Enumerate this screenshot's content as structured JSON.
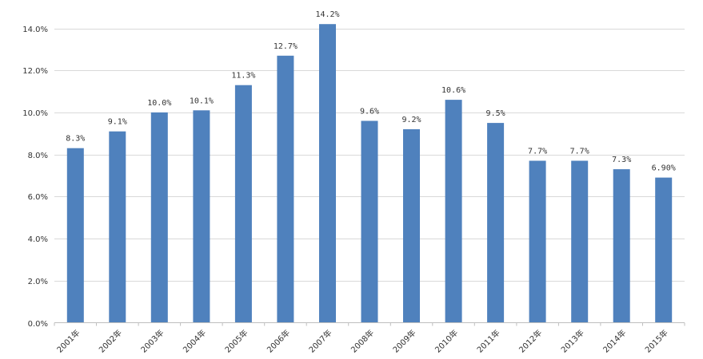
{
  "chart_data": {
    "type": "bar",
    "title": "",
    "xlabel": "",
    "ylabel": "",
    "categories": [
      "2001年",
      "2002年",
      "2003年",
      "2004年",
      "2005年",
      "2006年",
      "2007年",
      "2008年",
      "2009年",
      "2010年",
      "2011年",
      "2012年",
      "2013年",
      "2014年",
      "2015年"
    ],
    "values": [
      8.3,
      9.1,
      10.0,
      10.1,
      11.3,
      12.7,
      14.2,
      9.6,
      9.2,
      10.6,
      9.5,
      7.7,
      7.7,
      7.3,
      6.9
    ],
    "data_labels": [
      "8.3%",
      "9.1%",
      "10.0%",
      "10.1%",
      "11.3%",
      "12.7%",
      "14.2%",
      "9.6%",
      "9.2%",
      "10.6%",
      "9.5%",
      "7.7%",
      "7.7%",
      "7.3%",
      "6.90%"
    ],
    "y_ticks": [
      0,
      2,
      4,
      6,
      8,
      10,
      12,
      14
    ],
    "y_tick_labels": [
      "0.0%",
      "2.0%",
      "4.0%",
      "6.0%",
      "8.0%",
      "10.0%",
      "12.0%",
      "14.0%"
    ],
    "ylim": [
      0,
      14
    ],
    "bar_color": "#4f81bd",
    "grid": true,
    "legend": "none"
  }
}
